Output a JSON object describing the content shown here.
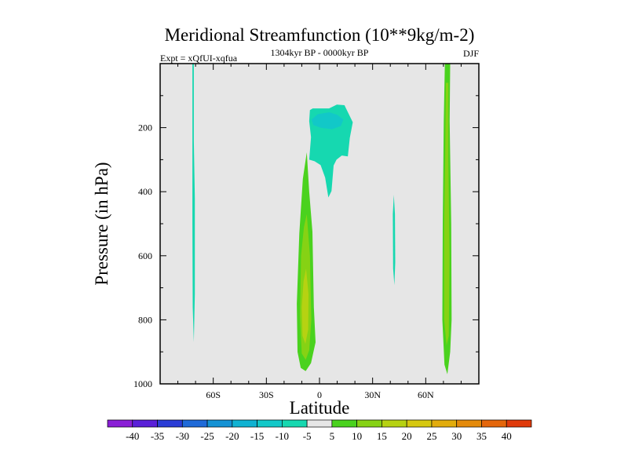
{
  "chart_data": {
    "type": "heatmap",
    "title": "Meridional Streamfunction (10**9kg/m-2)",
    "subtitle_left": "Expt = xQfUI-xqfua",
    "subtitle_center": "1304kyr BP - 0000kyr BP",
    "subtitle_right": "DJF",
    "xlabel": "Latitude",
    "ylabel": "Pressure (in hPa)",
    "xlim": [
      -90,
      90
    ],
    "ylim": [
      0,
      1000
    ],
    "y_reversed": true,
    "x_ticks": [
      {
        "value": -60,
        "label": "60S"
      },
      {
        "value": -30,
        "label": "30S"
      },
      {
        "value": 0,
        "label": "0"
      },
      {
        "value": 30,
        "label": "30N"
      },
      {
        "value": 60,
        "label": "60N"
      }
    ],
    "y_ticks": [
      {
        "value": 200,
        "label": "200"
      },
      {
        "value": 400,
        "label": "400"
      },
      {
        "value": 600,
        "label": "600"
      },
      {
        "value": 800,
        "label": "800"
      },
      {
        "value": 1000,
        "label": "1000"
      }
    ],
    "background_color": "#e6e6e6",
    "colorbar": {
      "levels": [
        -40,
        -35,
        -30,
        -25,
        -20,
        -15,
        -10,
        -5,
        5,
        10,
        15,
        20,
        25,
        30,
        35,
        40
      ],
      "labels": [
        "-40",
        "-35",
        "-30",
        "-25",
        "-20",
        "-15",
        "-10",
        "-5",
        "5",
        "10",
        "15",
        "20",
        "25",
        "30",
        "35",
        "40"
      ],
      "colors": [
        "#8a1fd6",
        "#5a20d8",
        "#2b3dd6",
        "#1f6ad8",
        "#1492d4",
        "#10b2d2",
        "#12c8c8",
        "#16d8b0",
        "#e6e6e6",
        "#4ad21e",
        "#86d214",
        "#b6d212",
        "#d6c810",
        "#e2ac0c",
        "#e48a0a",
        "#e4660a",
        "#e03a0a"
      ]
    },
    "regions": [
      {
        "name": "sh-high-lat-negative",
        "value_range": [
          -10,
          -5
        ],
        "color": "#16d8b0",
        "points": [
          [
            -71.8,
            0
          ],
          [
            -71.0,
            0
          ],
          [
            -71.0,
            240
          ],
          [
            -70.4,
            420
          ],
          [
            -70.4,
            720
          ],
          [
            -71.0,
            870
          ],
          [
            -71.6,
            760
          ],
          [
            -71.8,
            500
          ]
        ]
      },
      {
        "name": "upper-tropical-negative-outer",
        "value_range": [
          -10,
          -5
        ],
        "color": "#16d8b0",
        "points": [
          [
            -5.4,
            145
          ],
          [
            -3.8,
            140
          ],
          [
            5.4,
            140
          ],
          [
            9.8,
            128
          ],
          [
            14.1,
            130
          ],
          [
            18.8,
            183
          ],
          [
            17.1,
            232
          ],
          [
            16.0,
            290
          ],
          [
            12.6,
            287
          ],
          [
            9.6,
            300
          ],
          [
            8.0,
            318
          ],
          [
            6.8,
            398
          ],
          [
            5.0,
            418
          ],
          [
            3.2,
            356
          ],
          [
            0.6,
            317
          ],
          [
            -2.8,
            305
          ],
          [
            -5.8,
            300
          ],
          [
            -4.8,
            230
          ],
          [
            -5.8,
            180
          ]
        ]
      },
      {
        "name": "upper-tropical-negative-core",
        "value_range": [
          -15,
          -10
        ],
        "color": "#12c8c8",
        "points": [
          [
            -4.5,
            175
          ],
          [
            -1.0,
            158
          ],
          [
            5.5,
            152
          ],
          [
            10.0,
            160
          ],
          [
            13.5,
            175
          ],
          [
            12.0,
            195
          ],
          [
            7.0,
            205
          ],
          [
            0.5,
            200
          ],
          [
            -3.5,
            192
          ]
        ]
      },
      {
        "name": "tropical-positive-outer",
        "value_range": [
          5,
          10
        ],
        "color": "#4ad21e",
        "points": [
          [
            -7.2,
            277
          ],
          [
            -5.8,
            400
          ],
          [
            -4.0,
            525
          ],
          [
            -3.2,
            760
          ],
          [
            -2.2,
            870
          ],
          [
            -4.8,
            935
          ],
          [
            -7.8,
            960
          ],
          [
            -10.6,
            950
          ],
          [
            -12.4,
            900
          ],
          [
            -12.8,
            750
          ],
          [
            -11.4,
            530
          ],
          [
            -9.4,
            360
          ]
        ]
      },
      {
        "name": "tropical-positive-mid",
        "value_range": [
          10,
          15
        ],
        "color": "#86d214",
        "points": [
          [
            -7.2,
            470
          ],
          [
            -5.4,
            600
          ],
          [
            -4.6,
            800
          ],
          [
            -5.8,
            895
          ],
          [
            -7.8,
            925
          ],
          [
            -10.0,
            905
          ],
          [
            -11.0,
            790
          ],
          [
            -10.4,
            600
          ],
          [
            -8.8,
            510
          ]
        ]
      },
      {
        "name": "tropical-positive-core",
        "value_range": [
          15,
          20
        ],
        "color": "#b6d212",
        "points": [
          [
            -7.6,
            640
          ],
          [
            -6.2,
            720
          ],
          [
            -6.4,
            830
          ],
          [
            -8.0,
            875
          ],
          [
            -9.6,
            850
          ],
          [
            -10.0,
            760
          ],
          [
            -9.0,
            680
          ]
        ]
      },
      {
        "name": "nh-midlat-negative",
        "value_range": [
          -10,
          -5
        ],
        "color": "#16d8b0",
        "points": [
          [
            42.0,
            410
          ],
          [
            42.6,
            470
          ],
          [
            42.8,
            620
          ],
          [
            42.3,
            692
          ],
          [
            41.6,
            640
          ],
          [
            41.4,
            470
          ]
        ]
      },
      {
        "name": "nh-high-lat-positive-outer",
        "value_range": [
          5,
          10
        ],
        "color": "#4ad21e",
        "points": [
          [
            70.8,
            0
          ],
          [
            73.8,
            0
          ],
          [
            73.5,
            180
          ],
          [
            74.4,
            500
          ],
          [
            74.6,
            800
          ],
          [
            73.8,
            900
          ],
          [
            72.2,
            970
          ],
          [
            70.6,
            940
          ],
          [
            69.4,
            800
          ],
          [
            69.6,
            500
          ],
          [
            70.2,
            180
          ]
        ]
      },
      {
        "name": "nh-high-lat-positive-core",
        "value_range": [
          10,
          15
        ],
        "color": "#86d214",
        "points": [
          [
            71.4,
            60
          ],
          [
            72.8,
            60
          ],
          [
            72.8,
            300
          ],
          [
            73.4,
            600
          ],
          [
            73.0,
            850
          ],
          [
            71.8,
            880
          ],
          [
            70.4,
            800
          ],
          [
            70.4,
            500
          ],
          [
            71.0,
            300
          ]
        ]
      }
    ]
  }
}
